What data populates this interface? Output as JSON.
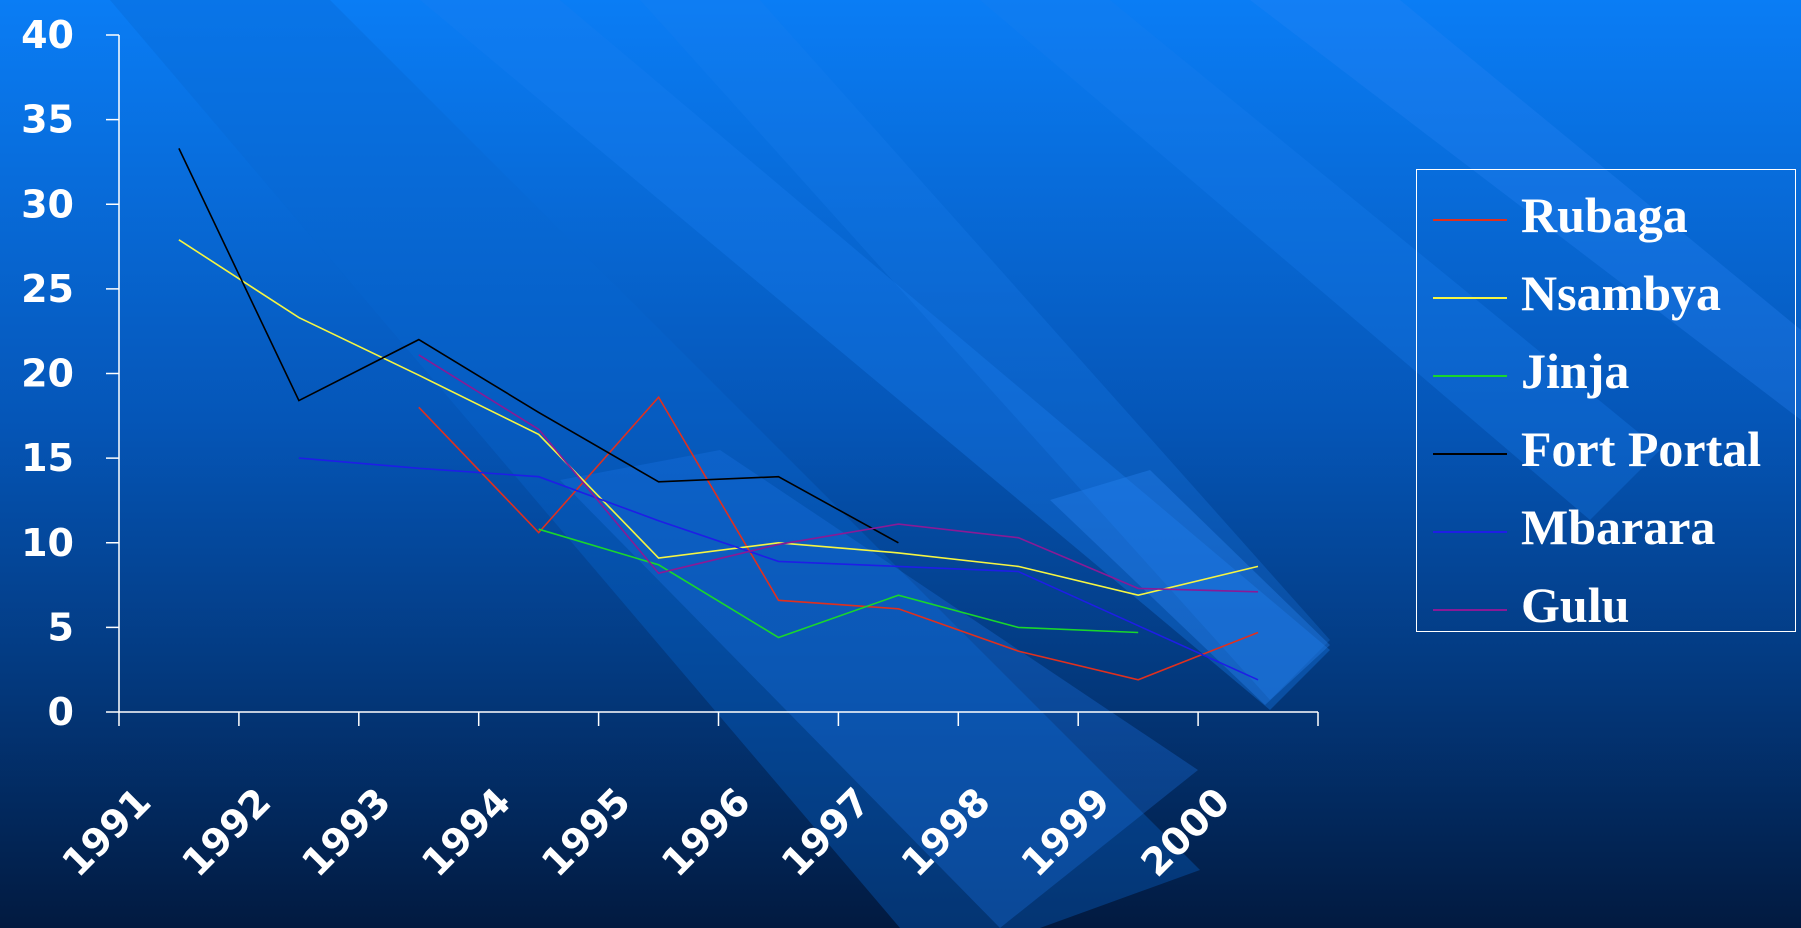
{
  "chart_data": {
    "type": "line",
    "categories": [
      "1991",
      "1992",
      "1993",
      "1994",
      "1995",
      "1996",
      "1997",
      "1998",
      "1999",
      "2000"
    ],
    "ylim": [
      0,
      40
    ],
    "yticks": [
      0,
      5,
      10,
      15,
      20,
      25,
      30,
      35,
      40
    ],
    "grid": false,
    "legend_position": "right",
    "series": [
      {
        "name": "Rubaga",
        "color": "#e0301e",
        "values": [
          null,
          null,
          18.0,
          10.6,
          18.6,
          6.6,
          6.1,
          3.6,
          1.9,
          4.7
        ]
      },
      {
        "name": "Nsambya",
        "color": "#f5f542",
        "values": [
          27.9,
          23.3,
          19.9,
          16.4,
          9.1,
          10.0,
          9.4,
          8.6,
          6.9,
          8.6
        ]
      },
      {
        "name": "Jinja",
        "color": "#19d62c",
        "values": [
          null,
          null,
          null,
          10.8,
          8.7,
          4.4,
          6.9,
          5.0,
          4.7,
          null
        ]
      },
      {
        "name": "Fort Portal",
        "color": "#000000",
        "values": [
          33.3,
          18.4,
          22.0,
          17.7,
          13.6,
          13.9,
          10.0,
          null,
          null,
          null
        ]
      },
      {
        "name": "Mbarara",
        "color": "#1e1ee6",
        "values": [
          null,
          15.0,
          14.4,
          13.9,
          11.3,
          8.9,
          8.6,
          8.3,
          5.1,
          1.9
        ]
      },
      {
        "name": "Gulu",
        "color": "#8a1a96",
        "values": [
          null,
          null,
          21.1,
          16.7,
          8.2,
          9.9,
          11.1,
          10.3,
          7.3,
          7.1
        ]
      }
    ]
  }
}
